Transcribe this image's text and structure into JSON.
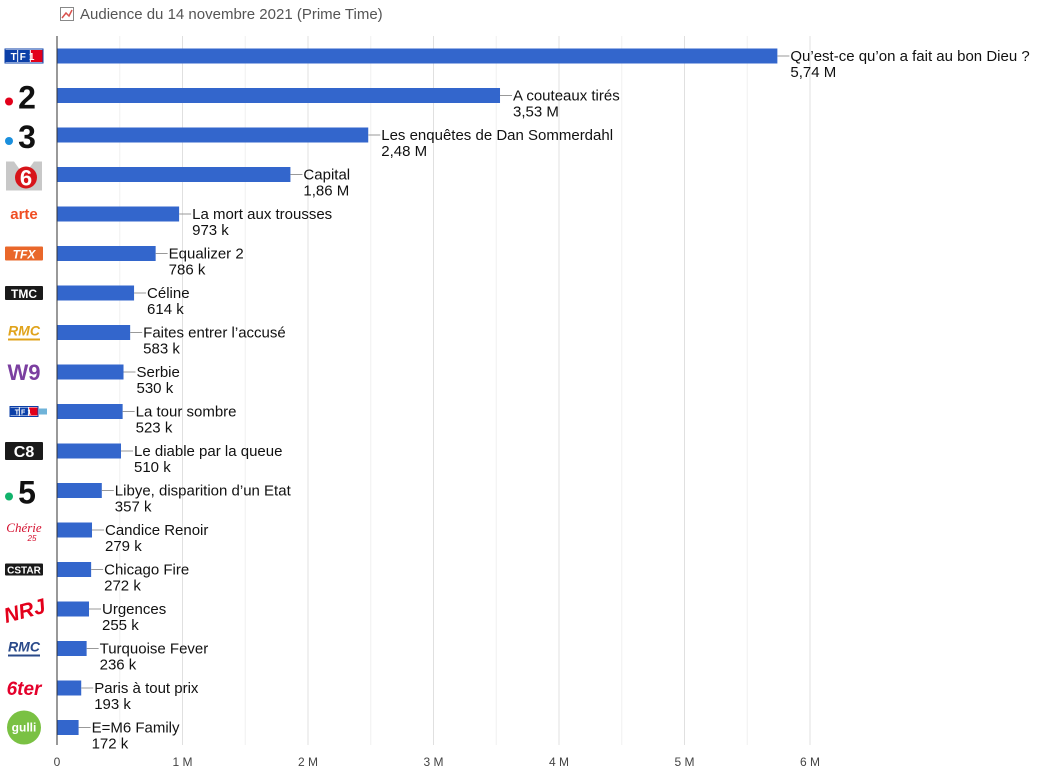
{
  "title": "Audience du 14 novembre 2021 (Prime Time)",
  "colors": {
    "bar": "#3366cc",
    "grid": "#e6e6e6",
    "axis": "#333333",
    "leader": "#999999"
  },
  "chart_data": {
    "type": "bar",
    "orientation": "horizontal",
    "title": "Audience du 14 novembre 2021 (Prime Time)",
    "xlabel": "",
    "ylabel": "",
    "xlim": [
      0,
      6000000
    ],
    "x_ticks": [
      0,
      1000000,
      2000000,
      3000000,
      4000000,
      5000000,
      6000000
    ],
    "x_tick_labels": [
      "0",
      "1 M",
      "2 M",
      "3 M",
      "4 M",
      "5 M",
      "6 M"
    ],
    "grid": true,
    "series": [
      {
        "name": "Audience",
        "values": [
          5740000,
          3530000,
          2480000,
          1860000,
          973000,
          786000,
          614000,
          583000,
          530000,
          523000,
          510000,
          357000,
          279000,
          272000,
          255000,
          236000,
          193000,
          172000
        ]
      }
    ],
    "programs": [
      "Qu’est-ce qu’on a fait au bon Dieu ?",
      "A couteaux tirés",
      "Les enquêtes de Dan Sommerdahl",
      "Capital",
      "La mort aux trousses",
      "Equalizer 2",
      "Céline",
      "Faites entrer l’accusé",
      "Serbie",
      "La tour sombre",
      "Le diable par la queue",
      "Libye, disparition d’un Etat",
      "Candice Renoir",
      "Chicago Fire",
      "Urgences",
      "Turquoise Fever",
      "Paris à tout prix",
      "E=M6 Family"
    ],
    "value_labels": [
      "5,74 M",
      "3,53 M",
      "2,48 M",
      "1,86 M",
      "973 k",
      "786 k",
      "614 k",
      "583 k",
      "530 k",
      "523 k",
      "510 k",
      "357 k",
      "279 k",
      "272 k",
      "255 k",
      "236 k",
      "193 k",
      "172 k"
    ],
    "channels": [
      {
        "name": "TF1",
        "logo_text": "TF1",
        "icon": "tf1-logo-icon"
      },
      {
        "name": "France 2",
        "logo_text": "2",
        "icon": "france2-logo-icon"
      },
      {
        "name": "France 3",
        "logo_text": "3",
        "icon": "france3-logo-icon"
      },
      {
        "name": "M6",
        "logo_text": "6",
        "icon": "m6-logo-icon"
      },
      {
        "name": "Arte",
        "logo_text": "arte",
        "icon": "arte-logo-icon"
      },
      {
        "name": "TFX",
        "logo_text": "TFX",
        "icon": "tfx-logo-icon"
      },
      {
        "name": "TMC",
        "logo_text": "TMC",
        "icon": "tmc-logo-icon"
      },
      {
        "name": "RMC Story",
        "logo_text": "RMC",
        "icon": "rmc-story-logo-icon"
      },
      {
        "name": "W9",
        "logo_text": "W9",
        "icon": "w9-logo-icon"
      },
      {
        "name": "TF1 Séries Films",
        "logo_text": "TF1",
        "icon": "tf1-series-films-logo-icon"
      },
      {
        "name": "C8",
        "logo_text": "C8",
        "icon": "c8-logo-icon"
      },
      {
        "name": "France 5",
        "logo_text": "5",
        "icon": "france5-logo-icon"
      },
      {
        "name": "Chérie 25",
        "logo_text": "Chérie",
        "icon": "cherie25-logo-icon"
      },
      {
        "name": "CStar",
        "logo_text": "CSTAR",
        "icon": "cstar-logo-icon"
      },
      {
        "name": "NRJ 12",
        "logo_text": "NRJ",
        "icon": "nrj12-logo-icon"
      },
      {
        "name": "RMC Découverte",
        "logo_text": "RMC",
        "icon": "rmc-decouverte-logo-icon"
      },
      {
        "name": "6ter",
        "logo_text": "6ter",
        "icon": "6ter-logo-icon"
      },
      {
        "name": "Gulli",
        "logo_text": "gulli",
        "icon": "gulli-logo-icon"
      }
    ]
  }
}
